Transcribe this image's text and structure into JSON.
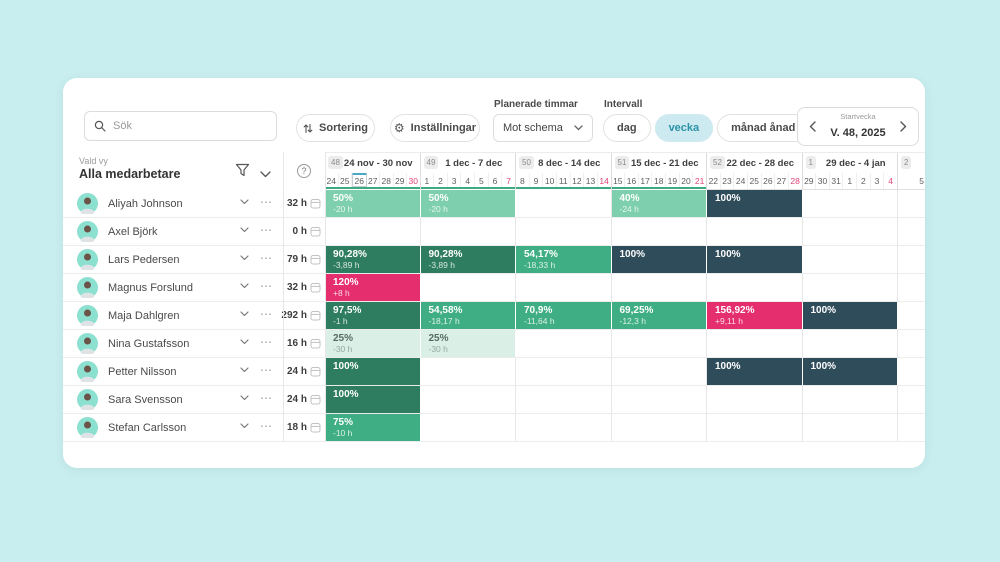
{
  "colors": {
    "page_bg": "#c9eef0",
    "cell_light_green": "#7ecfad",
    "cell_mid_green": "#3fae85",
    "cell_dark_green": "#2e7d60",
    "cell_navy": "#2f4c5b",
    "cell_pink": "#e42e6d",
    "cell_pale_green": "#daf0e6",
    "sunday_red": "#e0457b",
    "period_underline": "#3cab83",
    "today_marker": "#49a8c2",
    "selected_pill_bg": "#cdeaf0",
    "selected_pill_text": "#2c93a8"
  },
  "icons": {
    "ellipsis": "⋯",
    "help": "?",
    "gear": "⚙"
  },
  "toolbar": {
    "search": {
      "placeholder": "Sök"
    },
    "sorting_label": "Sortering",
    "settings_label": "Inställningar",
    "planned_hours": {
      "label": "Planerade timmar",
      "value": "Mot schema"
    },
    "interval": {
      "label": "Intervall",
      "options": [
        "dag",
        "vecka",
        "månad ånad"
      ],
      "selected": "vecka"
    },
    "week_picker": {
      "label": "Startvecka",
      "value": "V. 48, 2025"
    }
  },
  "left_panel": {
    "view_label": "Vald vy",
    "view_value": "Alla medarbetare"
  },
  "timeline": {
    "today": "26",
    "weeks": [
      {
        "num": "48",
        "range": "24 nov - 30 nov",
        "days": [
          "24",
          "25",
          "26",
          "27",
          "28",
          "29",
          "30"
        ],
        "period": true
      },
      {
        "num": "49",
        "range": "1 dec - 7 dec",
        "days": [
          "1",
          "2",
          "3",
          "4",
          "5",
          "6",
          "7"
        ],
        "period": true
      },
      {
        "num": "50",
        "range": "8 dec - 14 dec",
        "days": [
          "8",
          "9",
          "10",
          "11",
          "12",
          "13",
          "14"
        ],
        "period": true
      },
      {
        "num": "51",
        "range": "15 dec - 21 dec",
        "days": [
          "15",
          "16",
          "17",
          "18",
          "19",
          "20",
          "21"
        ],
        "period": true
      },
      {
        "num": "52",
        "range": "22 dec - 28 dec",
        "days": [
          "22",
          "23",
          "24",
          "25",
          "26",
          "27",
          "28"
        ],
        "period": false
      },
      {
        "num": "1",
        "range": "29 dec - 4 jan",
        "days": [
          "29",
          "30",
          "31",
          "1",
          "2",
          "3",
          "4"
        ],
        "period": false
      },
      {
        "num": "2",
        "range": "5 j",
        "days": [
          "5",
          "6"
        ],
        "period": false
      }
    ]
  },
  "employees": [
    {
      "name": "Aliyah Johnson",
      "hours": "32 h",
      "cells": [
        {
          "pct": "50%",
          "diff": "-20 h",
          "variant": "light"
        },
        {
          "pct": "50%",
          "diff": "-20 h",
          "variant": "light"
        },
        null,
        {
          "pct": "40%",
          "diff": "-24 h",
          "variant": "light"
        },
        {
          "pct": "100%",
          "diff": "",
          "variant": "navy"
        },
        null,
        null
      ]
    },
    {
      "name": "Axel Björk",
      "hours": "0 h",
      "cells": [
        null,
        null,
        null,
        null,
        null,
        null,
        null
      ]
    },
    {
      "name": "Lars Pedersen",
      "hours": "79 h",
      "cells": [
        {
          "pct": "90,28%",
          "diff": "-3,89 h",
          "variant": "dark"
        },
        {
          "pct": "90,28%",
          "diff": "-3,89 h",
          "variant": "dark"
        },
        {
          "pct": "54,17%",
          "diff": "-18,33 h",
          "variant": "mid"
        },
        {
          "pct": "100%",
          "diff": "",
          "variant": "navy"
        },
        {
          "pct": "100%",
          "diff": "",
          "variant": "navy"
        },
        null,
        null
      ]
    },
    {
      "name": "Magnus Forslund",
      "hours": "32 h",
      "cells": [
        {
          "pct": "120%",
          "diff": "+8 h",
          "variant": "pink"
        },
        null,
        null,
        null,
        null,
        null,
        null
      ]
    },
    {
      "name": "Maja Dahlgren",
      "hours": "292 h",
      "cells": [
        {
          "pct": "97,5%",
          "diff": "-1 h",
          "variant": "dark"
        },
        {
          "pct": "54,58%",
          "diff": "-18,17 h",
          "variant": "mid"
        },
        {
          "pct": "70,9%",
          "diff": "-11,64 h",
          "variant": "mid"
        },
        {
          "pct": "69,25%",
          "diff": "-12,3 h",
          "variant": "mid"
        },
        {
          "pct": "156,92%",
          "diff": "+9,11 h",
          "variant": "pink"
        },
        {
          "pct": "100%",
          "diff": "",
          "variant": "navy"
        },
        null
      ]
    },
    {
      "name": "Nina Gustafsson",
      "hours": "16 h",
      "cells": [
        {
          "pct": "25%",
          "diff": "-30 h",
          "variant": "pale"
        },
        {
          "pct": "25%",
          "diff": "-30 h",
          "variant": "pale"
        },
        null,
        null,
        null,
        null,
        null
      ]
    },
    {
      "name": "Petter Nilsson",
      "hours": "24 h",
      "cells": [
        {
          "pct": "100%",
          "diff": "",
          "variant": "dark"
        },
        null,
        null,
        null,
        {
          "pct": "100%",
          "diff": "",
          "variant": "navy"
        },
        {
          "pct": "100%",
          "diff": "",
          "variant": "navy"
        },
        null
      ]
    },
    {
      "name": "Sara Svensson",
      "hours": "24 h",
      "cells": [
        {
          "pct": "100%",
          "diff": "",
          "variant": "dark"
        },
        null,
        null,
        null,
        null,
        null,
        null
      ]
    },
    {
      "name": "Stefan Carlsson",
      "hours": "18 h",
      "cells": [
        {
          "pct": "75%",
          "diff": "-10 h",
          "variant": "mid"
        },
        null,
        null,
        null,
        null,
        null,
        null
      ]
    }
  ]
}
